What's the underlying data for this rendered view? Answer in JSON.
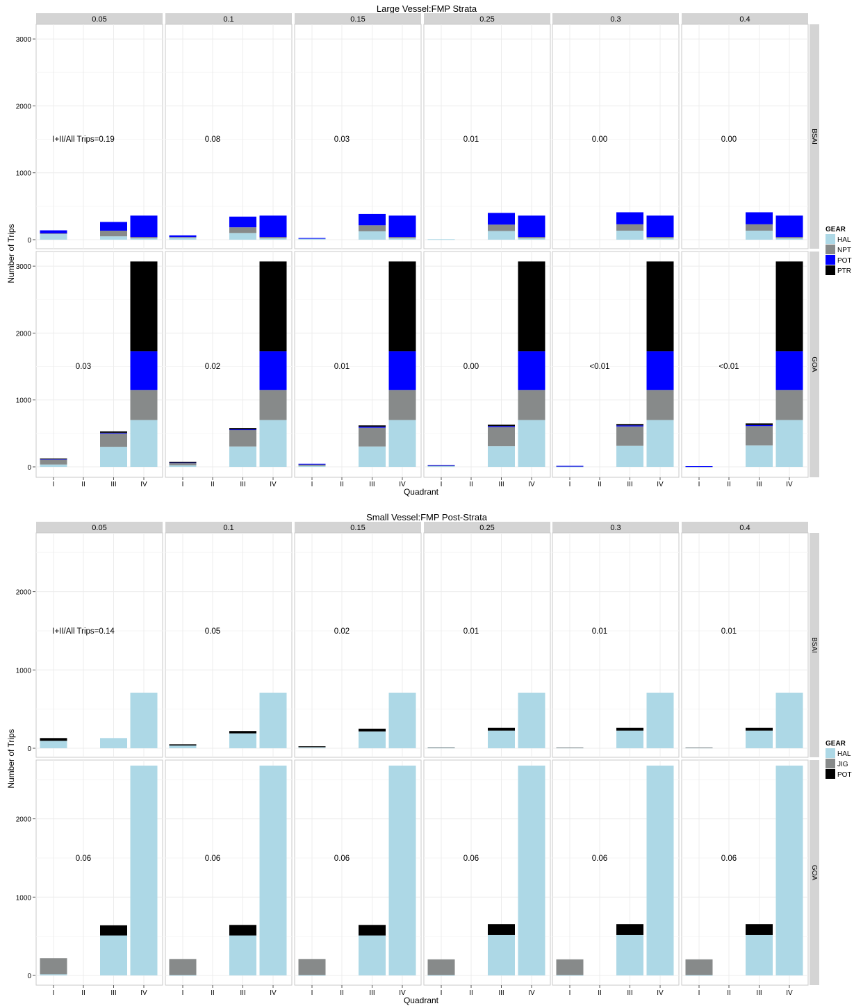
{
  "colors": {
    "HAL": "#add8e6",
    "NPT": "#878a8a",
    "JIG": "#878a8a",
    "POT_large": "#0000ff",
    "POT_small": "#000000",
    "PTR": "#000000",
    "strip": "#d4d4d4",
    "grid": "#ececec"
  },
  "chart_data": [
    {
      "type": "bar",
      "stacked": true,
      "title": "Large Vessel:FMP Strata",
      "xlabel": "Quadrant",
      "ylabel": "Number of Trips",
      "ylim": [
        0,
        3200
      ],
      "yticks": [
        "0",
        "1000",
        "2000",
        "3000"
      ],
      "categories": [
        "I",
        "II",
        "III",
        "IV"
      ],
      "facet_cols": [
        "0.05",
        "0.1",
        "0.15",
        "0.25",
        "0.3",
        "0.4"
      ],
      "facet_rows": [
        "BSAI",
        "GOA"
      ],
      "legend": {
        "title": "GEAR",
        "position": "right",
        "entries": [
          {
            "label": "HAL",
            "color_key": "HAL"
          },
          {
            "label": "NPT",
            "color_key": "NPT"
          },
          {
            "label": "POT",
            "color_key": "POT_large"
          },
          {
            "label": "PTR",
            "color_key": "PTR"
          }
        ]
      },
      "stack_order": [
        "HAL",
        "NPT",
        "POT",
        "PTR"
      ],
      "annotations": {
        "BSAI": [
          "I+II/All Trips=0.19",
          "0.08",
          "0.03",
          "0.01",
          "0.00",
          "0.00"
        ],
        "GOA": [
          "0.03",
          "0.02",
          "0.01",
          "0.00",
          "<0.01",
          "<0.01"
        ]
      },
      "panels": {
        "BSAI": [
          {
            "I": {
              "HAL": 85,
              "NPT": 10,
              "POT": 45,
              "PTR": 0
            },
            "II": {},
            "III": {
              "HAL": 50,
              "NPT": 85,
              "POT": 130,
              "PTR": 0
            },
            "IV": {
              "HAL": 20,
              "NPT": 20,
              "POT": 320,
              "PTR": 0
            }
          },
          {
            "I": {
              "HAL": 35,
              "NPT": 5,
              "POT": 25,
              "PTR": 0
            },
            "II": {},
            "III": {
              "HAL": 100,
              "NPT": 85,
              "POT": 160,
              "PTR": 0
            },
            "IV": {
              "HAL": 20,
              "NPT": 20,
              "POT": 320,
              "PTR": 0
            }
          },
          {
            "I": {
              "HAL": 20,
              "NPT": 0,
              "POT": 5,
              "PTR": 0
            },
            "II": {},
            "III": {
              "HAL": 125,
              "NPT": 90,
              "POT": 170,
              "PTR": 0
            },
            "IV": {
              "HAL": 20,
              "NPT": 20,
              "POT": 320,
              "PTR": 0
            }
          },
          {
            "I": {
              "HAL": 8,
              "NPT": 0,
              "POT": 0,
              "PTR": 0
            },
            "II": {},
            "III": {
              "HAL": 130,
              "NPT": 95,
              "POT": 175,
              "PTR": 0
            },
            "IV": {
              "HAL": 20,
              "NPT": 20,
              "POT": 320,
              "PTR": 0
            }
          },
          {
            "I": {},
            "II": {},
            "III": {
              "HAL": 135,
              "NPT": 95,
              "POT": 180,
              "PTR": 0
            },
            "IV": {
              "HAL": 20,
              "NPT": 20,
              "POT": 320,
              "PTR": 0
            }
          },
          {
            "I": {},
            "II": {},
            "III": {
              "HAL": 135,
              "NPT": 95,
              "POT": 180,
              "PTR": 0
            },
            "IV": {
              "HAL": 20,
              "NPT": 20,
              "POT": 320,
              "PTR": 0
            }
          }
        ],
        "GOA": [
          {
            "I": {
              "HAL": 35,
              "NPT": 75,
              "POT": 10,
              "PTR": 5
            },
            "II": {},
            "III": {
              "HAL": 300,
              "NPT": 200,
              "POT": 10,
              "PTR": 20
            },
            "IV": {
              "HAL": 700,
              "NPT": 450,
              "POT": 580,
              "PTR": 1340
            }
          },
          {
            "I": {
              "HAL": 25,
              "NPT": 40,
              "POT": 5,
              "PTR": 5
            },
            "II": {},
            "III": {
              "HAL": 305,
              "NPT": 245,
              "POT": 10,
              "PTR": 20
            },
            "IV": {
              "HAL": 700,
              "NPT": 450,
              "POT": 580,
              "PTR": 1340
            }
          },
          {
            "I": {
              "HAL": 15,
              "NPT": 25,
              "POT": 5,
              "PTR": 0
            },
            "II": {},
            "III": {
              "HAL": 305,
              "NPT": 280,
              "POT": 15,
              "PTR": 20
            },
            "IV": {
              "HAL": 700,
              "NPT": 450,
              "POT": 580,
              "PTR": 1340
            }
          },
          {
            "I": {
              "HAL": 10,
              "NPT": 15,
              "POT": 3,
              "PTR": 0
            },
            "II": {},
            "III": {
              "HAL": 310,
              "NPT": 285,
              "POT": 15,
              "PTR": 20
            },
            "IV": {
              "HAL": 700,
              "NPT": 450,
              "POT": 580,
              "PTR": 1340
            }
          },
          {
            "I": {
              "HAL": 5,
              "NPT": 8,
              "POT": 2,
              "PTR": 0
            },
            "II": {},
            "III": {
              "HAL": 315,
              "NPT": 290,
              "POT": 15,
              "PTR": 20
            },
            "IV": {
              "HAL": 700,
              "NPT": 450,
              "POT": 580,
              "PTR": 1340
            }
          },
          {
            "I": {
              "HAL": 3,
              "NPT": 5,
              "POT": 2,
              "PTR": 0
            },
            "II": {},
            "III": {
              "HAL": 320,
              "NPT": 290,
              "POT": 15,
              "PTR": 25
            },
            "IV": {
              "HAL": 700,
              "NPT": 450,
              "POT": 580,
              "PTR": 1340
            }
          }
        ]
      }
    },
    {
      "type": "bar",
      "stacked": true,
      "title": "Small Vessel:FMP Post-Strata",
      "xlabel": "Quadrant",
      "ylabel": "Number of Trips",
      "ylim": [
        0,
        2800
      ],
      "yticks": [
        "0",
        "1000",
        "2000"
      ],
      "categories": [
        "I",
        "II",
        "III",
        "IV"
      ],
      "facet_cols": [
        "0.05",
        "0.1",
        "0.15",
        "0.25",
        "0.3",
        "0.4"
      ],
      "facet_rows": [
        "BSAI",
        "GOA"
      ],
      "legend": {
        "title": "GEAR",
        "position": "right",
        "entries": [
          {
            "label": "HAL",
            "color_key": "HAL"
          },
          {
            "label": "JIG",
            "color_key": "JIG"
          },
          {
            "label": "POT",
            "color_key": "POT_small"
          }
        ]
      },
      "stack_order": [
        "HAL",
        "JIG",
        "POT"
      ],
      "annotations": {
        "BSAI": [
          "I+II/All Trips=0.14",
          "0.05",
          "0.02",
          "0.01",
          "0.01",
          "0.01"
        ],
        "GOA": [
          "0.06",
          "0.06",
          "0.06",
          "0.06",
          "0.06",
          "0.06"
        ]
      },
      "panels": {
        "BSAI": [
          {
            "I": {
              "HAL": 95,
              "JIG": 0,
              "POT": 35
            },
            "II": {},
            "III": {
              "HAL": 130,
              "JIG": 0,
              "POT": 0
            },
            "IV": {
              "HAL": 710,
              "JIG": 0,
              "POT": 0
            }
          },
          {
            "I": {
              "HAL": 35,
              "JIG": 0,
              "POT": 15
            },
            "II": {},
            "III": {
              "HAL": 190,
              "JIG": 0,
              "POT": 30
            },
            "IV": {
              "HAL": 710,
              "JIG": 0,
              "POT": 0
            }
          },
          {
            "I": {
              "HAL": 10,
              "JIG": 10,
              "POT": 5
            },
            "II": {},
            "III": {
              "HAL": 215,
              "JIG": 0,
              "POT": 35
            },
            "IV": {
              "HAL": 710,
              "JIG": 0,
              "POT": 0
            }
          },
          {
            "I": {
              "HAL": 8,
              "JIG": 5,
              "POT": 0
            },
            "II": {},
            "III": {
              "HAL": 225,
              "JIG": 0,
              "POT": 35
            },
            "IV": {
              "HAL": 710,
              "JIG": 0,
              "POT": 0
            }
          },
          {
            "I": {
              "HAL": 8,
              "JIG": 3,
              "POT": 0
            },
            "II": {},
            "III": {
              "HAL": 225,
              "JIG": 0,
              "POT": 35
            },
            "IV": {
              "HAL": 710,
              "JIG": 0,
              "POT": 0
            }
          },
          {
            "I": {
              "HAL": 8,
              "JIG": 3,
              "POT": 0
            },
            "II": {},
            "III": {
              "HAL": 225,
              "JIG": 0,
              "POT": 35
            },
            "IV": {
              "HAL": 710,
              "JIG": 0,
              "POT": 0
            }
          }
        ],
        "GOA": [
          {
            "I": {
              "HAL": 15,
              "JIG": 205,
              "POT": 0
            },
            "II": {},
            "III": {
              "HAL": 510,
              "JIG": 0,
              "POT": 130
            },
            "IV": {
              "HAL": 2680,
              "JIG": 0,
              "POT": 0
            }
          },
          {
            "I": {
              "HAL": 5,
              "JIG": 205,
              "POT": 0
            },
            "II": {},
            "III": {
              "HAL": 510,
              "JIG": 0,
              "POT": 135
            },
            "IV": {
              "HAL": 2680,
              "JIG": 0,
              "POT": 0
            }
          },
          {
            "I": {
              "HAL": 5,
              "JIG": 205,
              "POT": 0
            },
            "II": {},
            "III": {
              "HAL": 510,
              "JIG": 0,
              "POT": 135
            },
            "IV": {
              "HAL": 2680,
              "JIG": 0,
              "POT": 0
            }
          },
          {
            "I": {
              "HAL": 5,
              "JIG": 200,
              "POT": 0
            },
            "II": {},
            "III": {
              "HAL": 515,
              "JIG": 0,
              "POT": 140
            },
            "IV": {
              "HAL": 2680,
              "JIG": 0,
              "POT": 0
            }
          },
          {
            "I": {
              "HAL": 5,
              "JIG": 200,
              "POT": 0
            },
            "II": {},
            "III": {
              "HAL": 515,
              "JIG": 0,
              "POT": 140
            },
            "IV": {
              "HAL": 2680,
              "JIG": 0,
              "POT": 0
            }
          },
          {
            "I": {
              "HAL": 5,
              "JIG": 200,
              "POT": 0
            },
            "II": {},
            "III": {
              "HAL": 515,
              "JIG": 0,
              "POT": 140
            },
            "IV": {
              "HAL": 2680,
              "JIG": 0,
              "POT": 0
            }
          }
        ]
      }
    }
  ]
}
